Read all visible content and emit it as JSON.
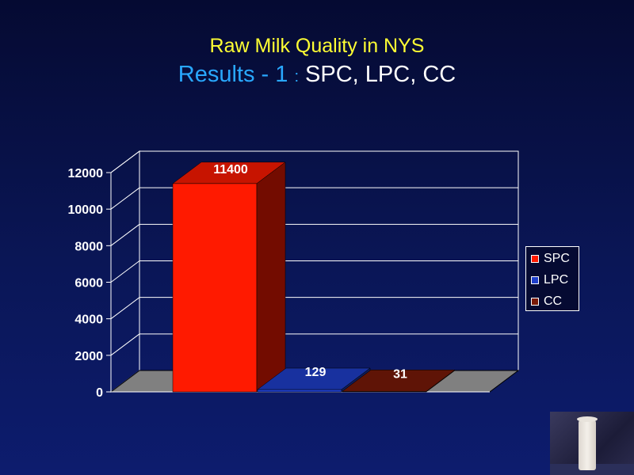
{
  "slide": {
    "title_line1": "Raw Milk Quality in NYS",
    "title_line2_part1": "Results - 1 ",
    "title_line2_sep": ":",
    "title_line2_part2": " SPC, LPC, CC"
  },
  "chart_data": {
    "type": "bar",
    "style": "3d",
    "categories": [
      "SPC",
      "LPC",
      "CC"
    ],
    "values": [
      11400,
      129,
      31
    ],
    "data_labels": [
      "11400",
      "129",
      "31"
    ],
    "series": [
      {
        "name": "SPC",
        "value": 11400,
        "color": "#ff1a00"
      },
      {
        "name": "LPC",
        "value": 129,
        "color": "#1f3fcc"
      },
      {
        "name": "CC",
        "value": 31,
        "color": "#7a1a08"
      }
    ],
    "y_ticks": [
      0,
      2000,
      4000,
      6000,
      8000,
      10000,
      12000
    ],
    "ylim": [
      0,
      12000
    ],
    "grid": true,
    "legend_position": "right",
    "xlabel": "",
    "ylabel": ""
  },
  "colors": {
    "background": "#0a1656",
    "title1": "#ffff33",
    "title2_accent": "#29a8ff",
    "floor": "#808080"
  },
  "photo": {
    "icon": "milk-glass-photo"
  }
}
